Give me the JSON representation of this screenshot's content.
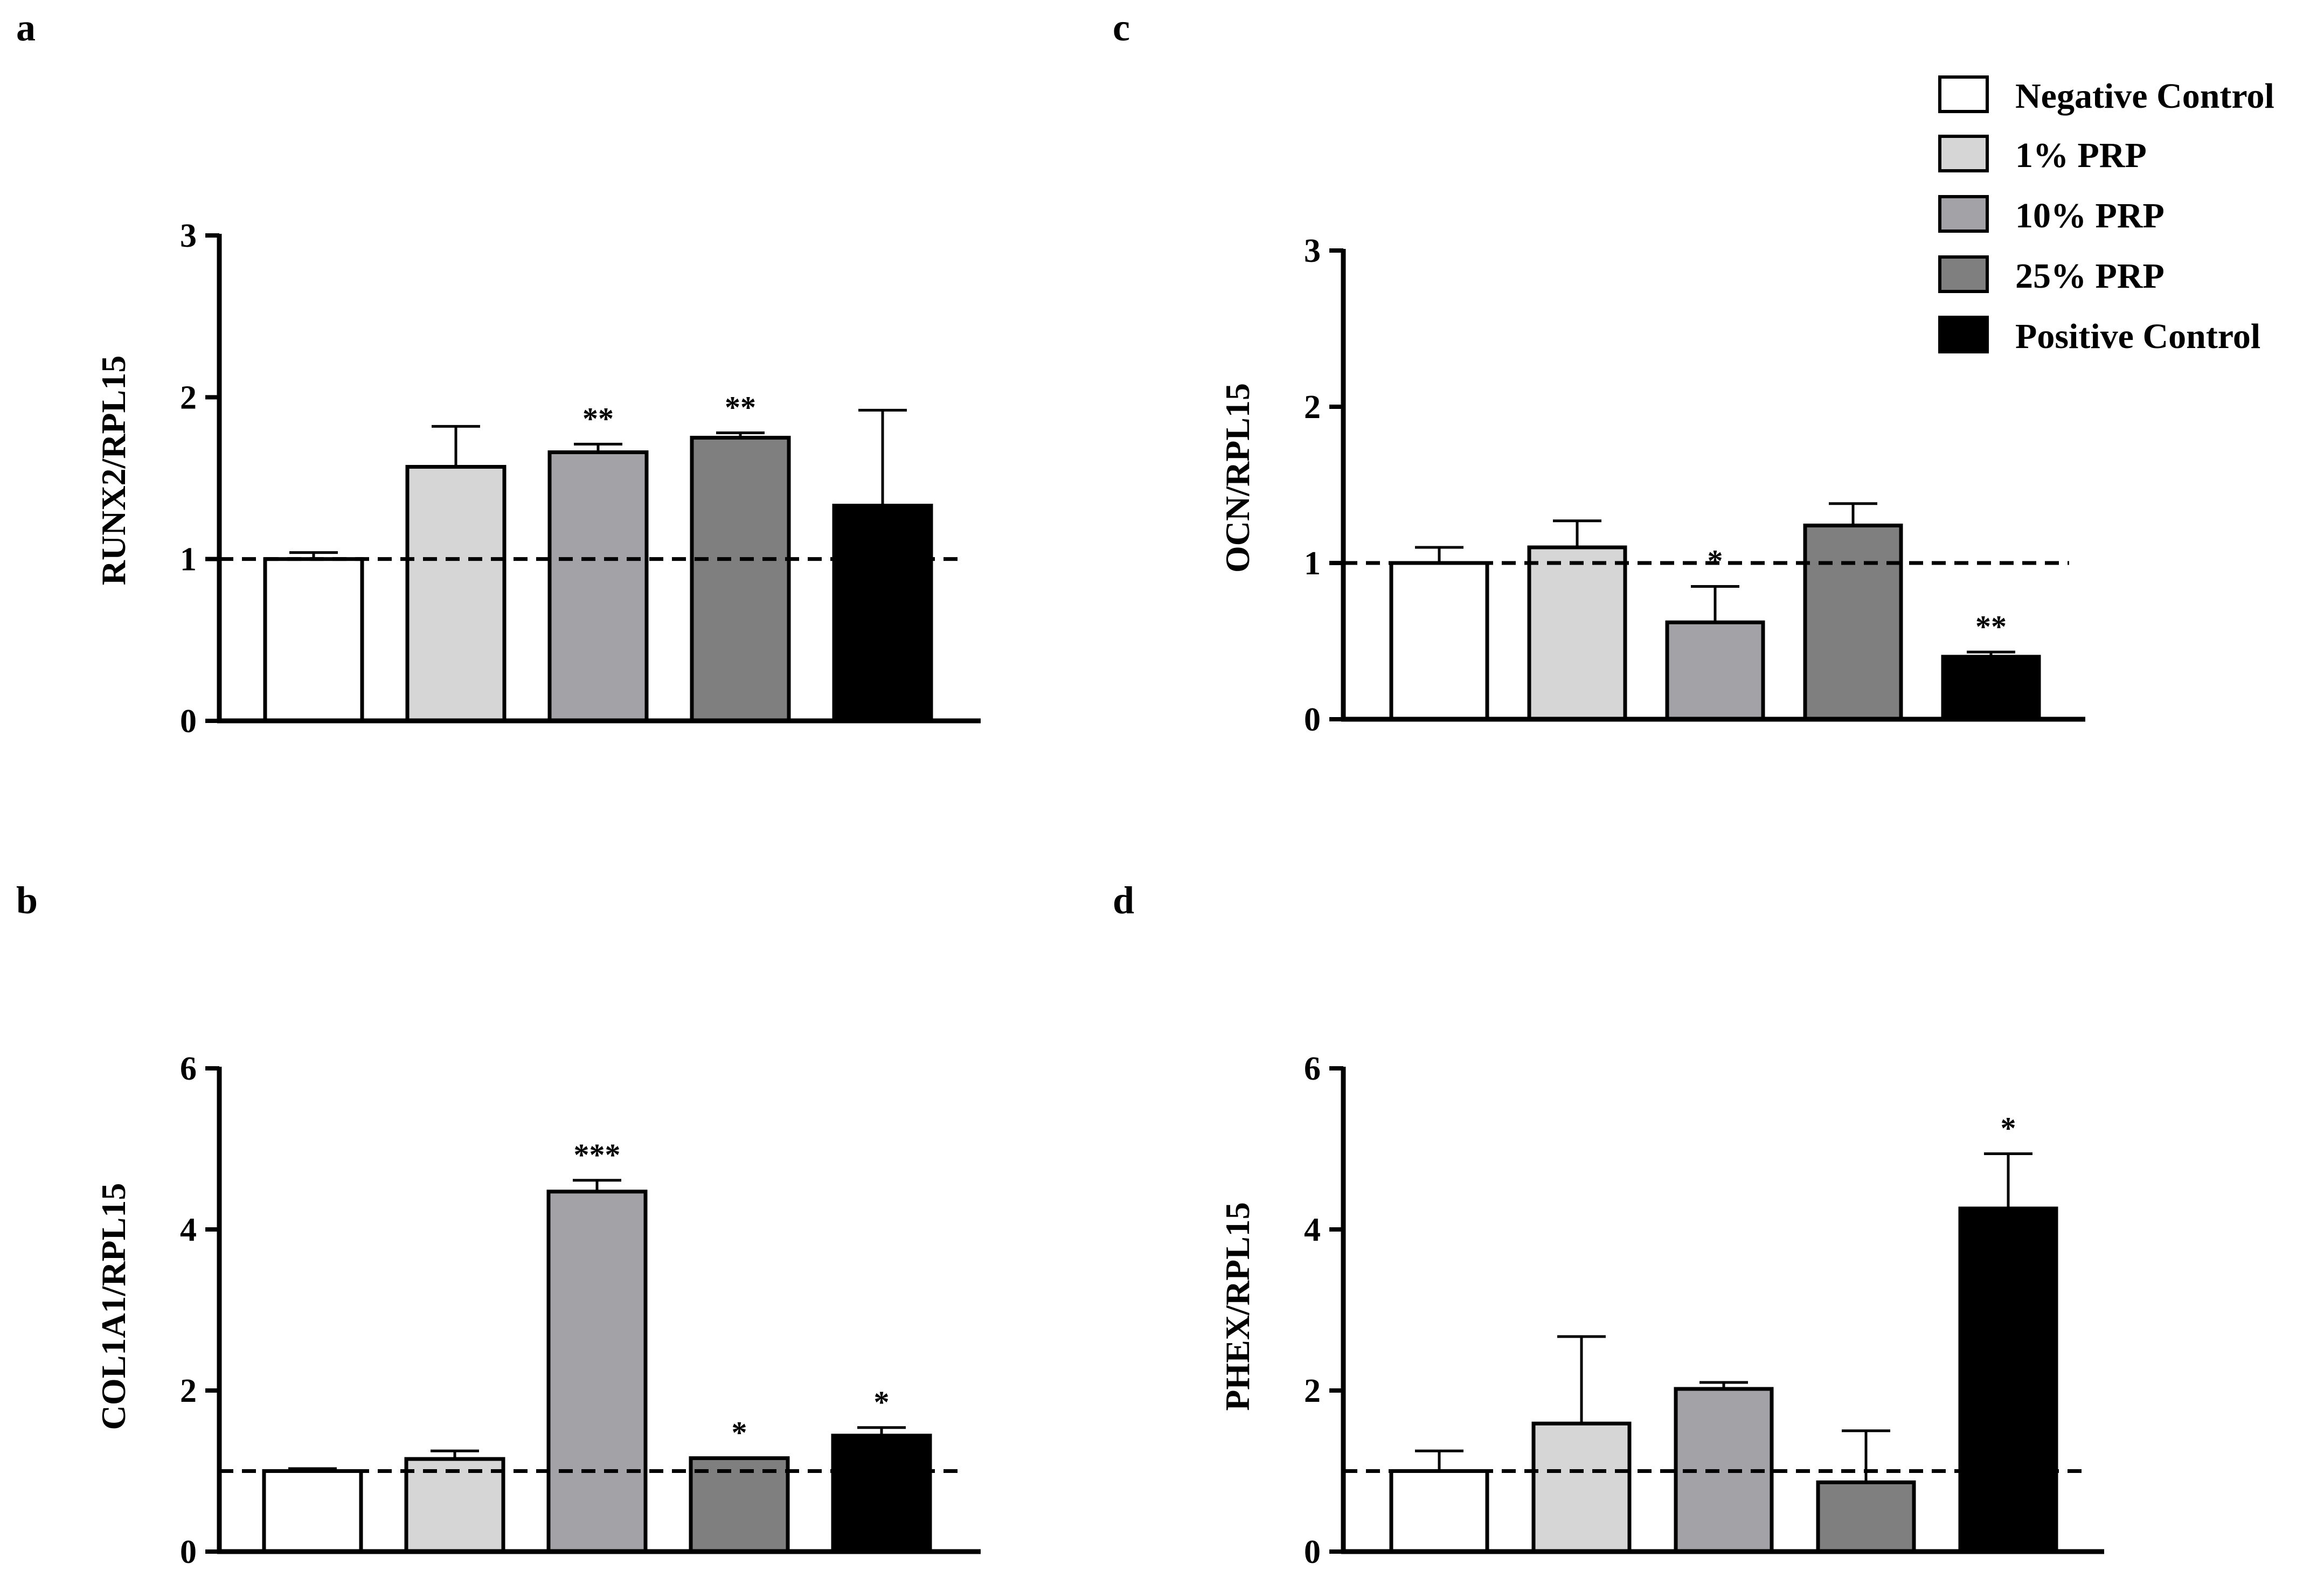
{
  "legend": {
    "items": [
      {
        "label": "Negative Control",
        "color": "#ffffff"
      },
      {
        "label": "1% PRP",
        "color": "#d6d6d6"
      },
      {
        "label": "10% PRP",
        "color": "#a3a3a7"
      },
      {
        "label": "25% PRP",
        "color": "#7f7f7f"
      },
      {
        "label": "Positive Control",
        "color": "#000000"
      }
    ]
  },
  "chart_data": [
    {
      "id": "a",
      "panel_label": "a",
      "type": "bar",
      "ylabel": "RUNX2/RPL15",
      "ylim": [
        0,
        3
      ],
      "yticks": [
        0,
        1,
        2,
        3
      ],
      "tick_labels": [
        "0",
        "1",
        "2",
        "3"
      ],
      "reference_line": 1,
      "categories": [
        "Negative Control",
        "1% PRP",
        "10% PRP",
        "25% PRP",
        "Positive Control"
      ],
      "values": [
        1.0,
        1.57,
        1.66,
        1.75,
        1.33
      ],
      "errors": [
        0.04,
        0.25,
        0.05,
        0.03,
        0.59
      ],
      "significance": [
        "",
        "",
        "**",
        "**",
        ""
      ]
    },
    {
      "id": "b",
      "panel_label": "b",
      "type": "bar",
      "ylabel": "COL1A1/RPL15",
      "ylim": [
        0,
        6
      ],
      "yticks": [
        0,
        2,
        4,
        6
      ],
      "tick_labels": [
        "0",
        "2",
        "4",
        "6"
      ],
      "reference_line": 1,
      "categories": [
        "Negative Control",
        "1% PRP",
        "10% PRP",
        "25% PRP",
        "Positive Control"
      ],
      "values": [
        1.0,
        1.15,
        4.47,
        1.16,
        1.44
      ],
      "errors": [
        0.03,
        0.1,
        0.14,
        0.0,
        0.1
      ],
      "significance": [
        "",
        "",
        "***",
        "*",
        "*"
      ]
    },
    {
      "id": "c",
      "panel_label": "c",
      "type": "bar",
      "ylabel": "OCN/RPL15",
      "ylim": [
        0,
        3
      ],
      "yticks": [
        0,
        1,
        2,
        3
      ],
      "tick_labels": [
        "0",
        "1",
        "2",
        "3"
      ],
      "reference_line": 1,
      "categories": [
        "Negative Control",
        "1% PRP",
        "10% PRP",
        "25% PRP",
        "Positive Control"
      ],
      "values": [
        1.0,
        1.1,
        0.62,
        1.24,
        0.4
      ],
      "errors": [
        0.1,
        0.17,
        0.23,
        0.14,
        0.03
      ],
      "significance": [
        "",
        "",
        "*",
        "",
        "**"
      ]
    },
    {
      "id": "d",
      "panel_label": "d",
      "type": "bar",
      "ylabel": "PHEX/RPL15",
      "ylim": [
        0,
        6
      ],
      "yticks": [
        0,
        2,
        4,
        6
      ],
      "tick_labels": [
        "0",
        "2",
        "4",
        "6"
      ],
      "reference_line": 1,
      "categories": [
        "Negative Control",
        "1% PRP",
        "10% PRP",
        "25% PRP",
        "Positive Control"
      ],
      "values": [
        1.0,
        1.59,
        2.02,
        0.86,
        4.26
      ],
      "errors": [
        0.25,
        1.08,
        0.08,
        0.64,
        0.68
      ],
      "significance": [
        "",
        "",
        "",
        "",
        "*"
      ]
    }
  ]
}
